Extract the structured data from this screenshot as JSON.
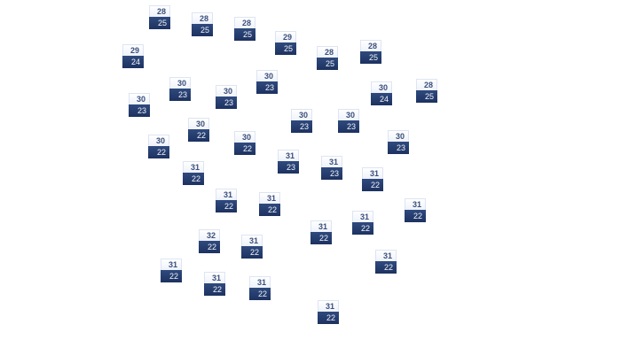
{
  "markers": [
    {
      "high": "28",
      "low": "25"
    },
    {
      "high": "28",
      "low": "25"
    },
    {
      "high": "28",
      "low": "25"
    },
    {
      "high": "29",
      "low": "25"
    },
    {
      "high": "28",
      "low": "25"
    },
    {
      "high": "28",
      "low": "25"
    },
    {
      "high": "29",
      "low": "24"
    },
    {
      "high": "30",
      "low": "23"
    },
    {
      "high": "30",
      "low": "23"
    },
    {
      "high": "30",
      "low": "23"
    },
    {
      "high": "30",
      "low": "24"
    },
    {
      "high": "28",
      "low": "25"
    },
    {
      "high": "30",
      "low": "23"
    },
    {
      "high": "30",
      "low": "23"
    },
    {
      "high": "30",
      "low": "23"
    },
    {
      "high": "30",
      "low": "22"
    },
    {
      "high": "30",
      "low": "22"
    },
    {
      "high": "30",
      "low": "23"
    },
    {
      "high": "30",
      "low": "22"
    },
    {
      "high": "31",
      "low": "23"
    },
    {
      "high": "31",
      "low": "23"
    },
    {
      "high": "31",
      "low": "22"
    },
    {
      "high": "31",
      "low": "22"
    },
    {
      "high": "31",
      "low": "22"
    },
    {
      "high": "31",
      "low": "22"
    },
    {
      "high": "31",
      "low": "22"
    },
    {
      "high": "31",
      "low": "22"
    },
    {
      "high": "31",
      "low": "22"
    },
    {
      "high": "32",
      "low": "22"
    },
    {
      "high": "31",
      "low": "22"
    },
    {
      "high": "31",
      "low": "22"
    },
    {
      "high": "31",
      "low": "22"
    },
    {
      "high": "31",
      "low": "22"
    },
    {
      "high": "31",
      "low": "22"
    },
    {
      "high": "31",
      "low": "22"
    }
  ],
  "colors": {
    "marker_top": "#eef2fa",
    "marker_bottom": "#1d3260",
    "high_text": "#3b4f7c",
    "low_text": "#f2f4fa"
  }
}
